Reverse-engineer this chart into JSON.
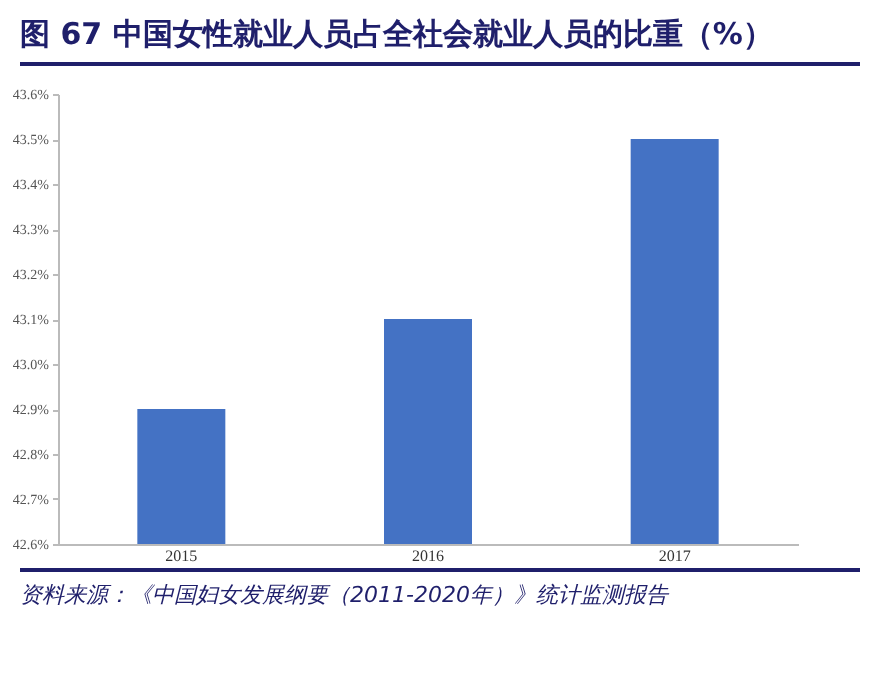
{
  "chart_data": {
    "type": "bar",
    "title": "图 67 中国女性就业人员占全社会就业人员的比重（%）",
    "categories": [
      "2015",
      "2016",
      "2017"
    ],
    "values": [
      42.9,
      43.1,
      43.5
    ],
    "color": "#4472c4",
    "ylim": [
      42.6,
      43.6
    ],
    "yticks": [
      {
        "value": 42.6,
        "label": "42.6%"
      },
      {
        "value": 42.7,
        "label": "42.7%"
      },
      {
        "value": 42.8,
        "label": "42.8%"
      },
      {
        "value": 42.9,
        "label": "42.9%"
      },
      {
        "value": 43.0,
        "label": "43.0%"
      },
      {
        "value": 43.1,
        "label": "43.1%"
      },
      {
        "value": 43.2,
        "label": "43.2%"
      },
      {
        "value": 43.3,
        "label": "43.3%"
      },
      {
        "value": 43.4,
        "label": "43.4%"
      },
      {
        "value": 43.5,
        "label": "43.5%"
      },
      {
        "value": 43.6,
        "label": "43.6%"
      }
    ],
    "grid": false,
    "annotations": [
      "资料来源：《中国妇女发展纲要（2011-2020年）》统计监测报告"
    ]
  }
}
